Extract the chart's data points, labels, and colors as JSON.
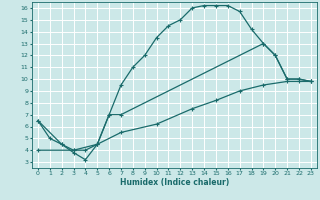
{
  "xlabel": "Humidex (Indice chaleur)",
  "bg_color": "#cce8e8",
  "line_color": "#1a6b6b",
  "grid_color": "#ffffff",
  "xlim": [
    -0.5,
    23.5
  ],
  "ylim": [
    2.5,
    16.5
  ],
  "xticks": [
    0,
    1,
    2,
    3,
    4,
    5,
    6,
    7,
    8,
    9,
    10,
    11,
    12,
    13,
    14,
    15,
    16,
    17,
    18,
    19,
    20,
    21,
    22,
    23
  ],
  "yticks": [
    3,
    4,
    5,
    6,
    7,
    8,
    9,
    10,
    11,
    12,
    13,
    14,
    15,
    16
  ],
  "line1_x": [
    0,
    1,
    2,
    3,
    4,
    5,
    6,
    7,
    8,
    9,
    10,
    11,
    12,
    13,
    14,
    15,
    16,
    17,
    18,
    19,
    20,
    21,
    22,
    23
  ],
  "line1_y": [
    6.5,
    5.0,
    4.5,
    4.0,
    4.0,
    4.5,
    7.0,
    9.5,
    11.0,
    12.0,
    13.5,
    14.5,
    15.0,
    16.0,
    16.2,
    16.2,
    16.2,
    15.7,
    14.2,
    13.0,
    12.0,
    10.0,
    10.0,
    9.8
  ],
  "line2_x": [
    0,
    2,
    3,
    4,
    5,
    6,
    7,
    19,
    20,
    21,
    22,
    23
  ],
  "line2_y": [
    6.5,
    4.5,
    3.8,
    3.2,
    4.5,
    7.0,
    7.0,
    13.0,
    12.0,
    10.0,
    10.0,
    9.8
  ],
  "line3_x": [
    0,
    3,
    5,
    7,
    10,
    13,
    15,
    17,
    19,
    21,
    22,
    23
  ],
  "line3_y": [
    4.0,
    4.0,
    4.5,
    5.5,
    6.2,
    7.5,
    8.2,
    9.0,
    9.5,
    9.8,
    9.8,
    9.8
  ]
}
